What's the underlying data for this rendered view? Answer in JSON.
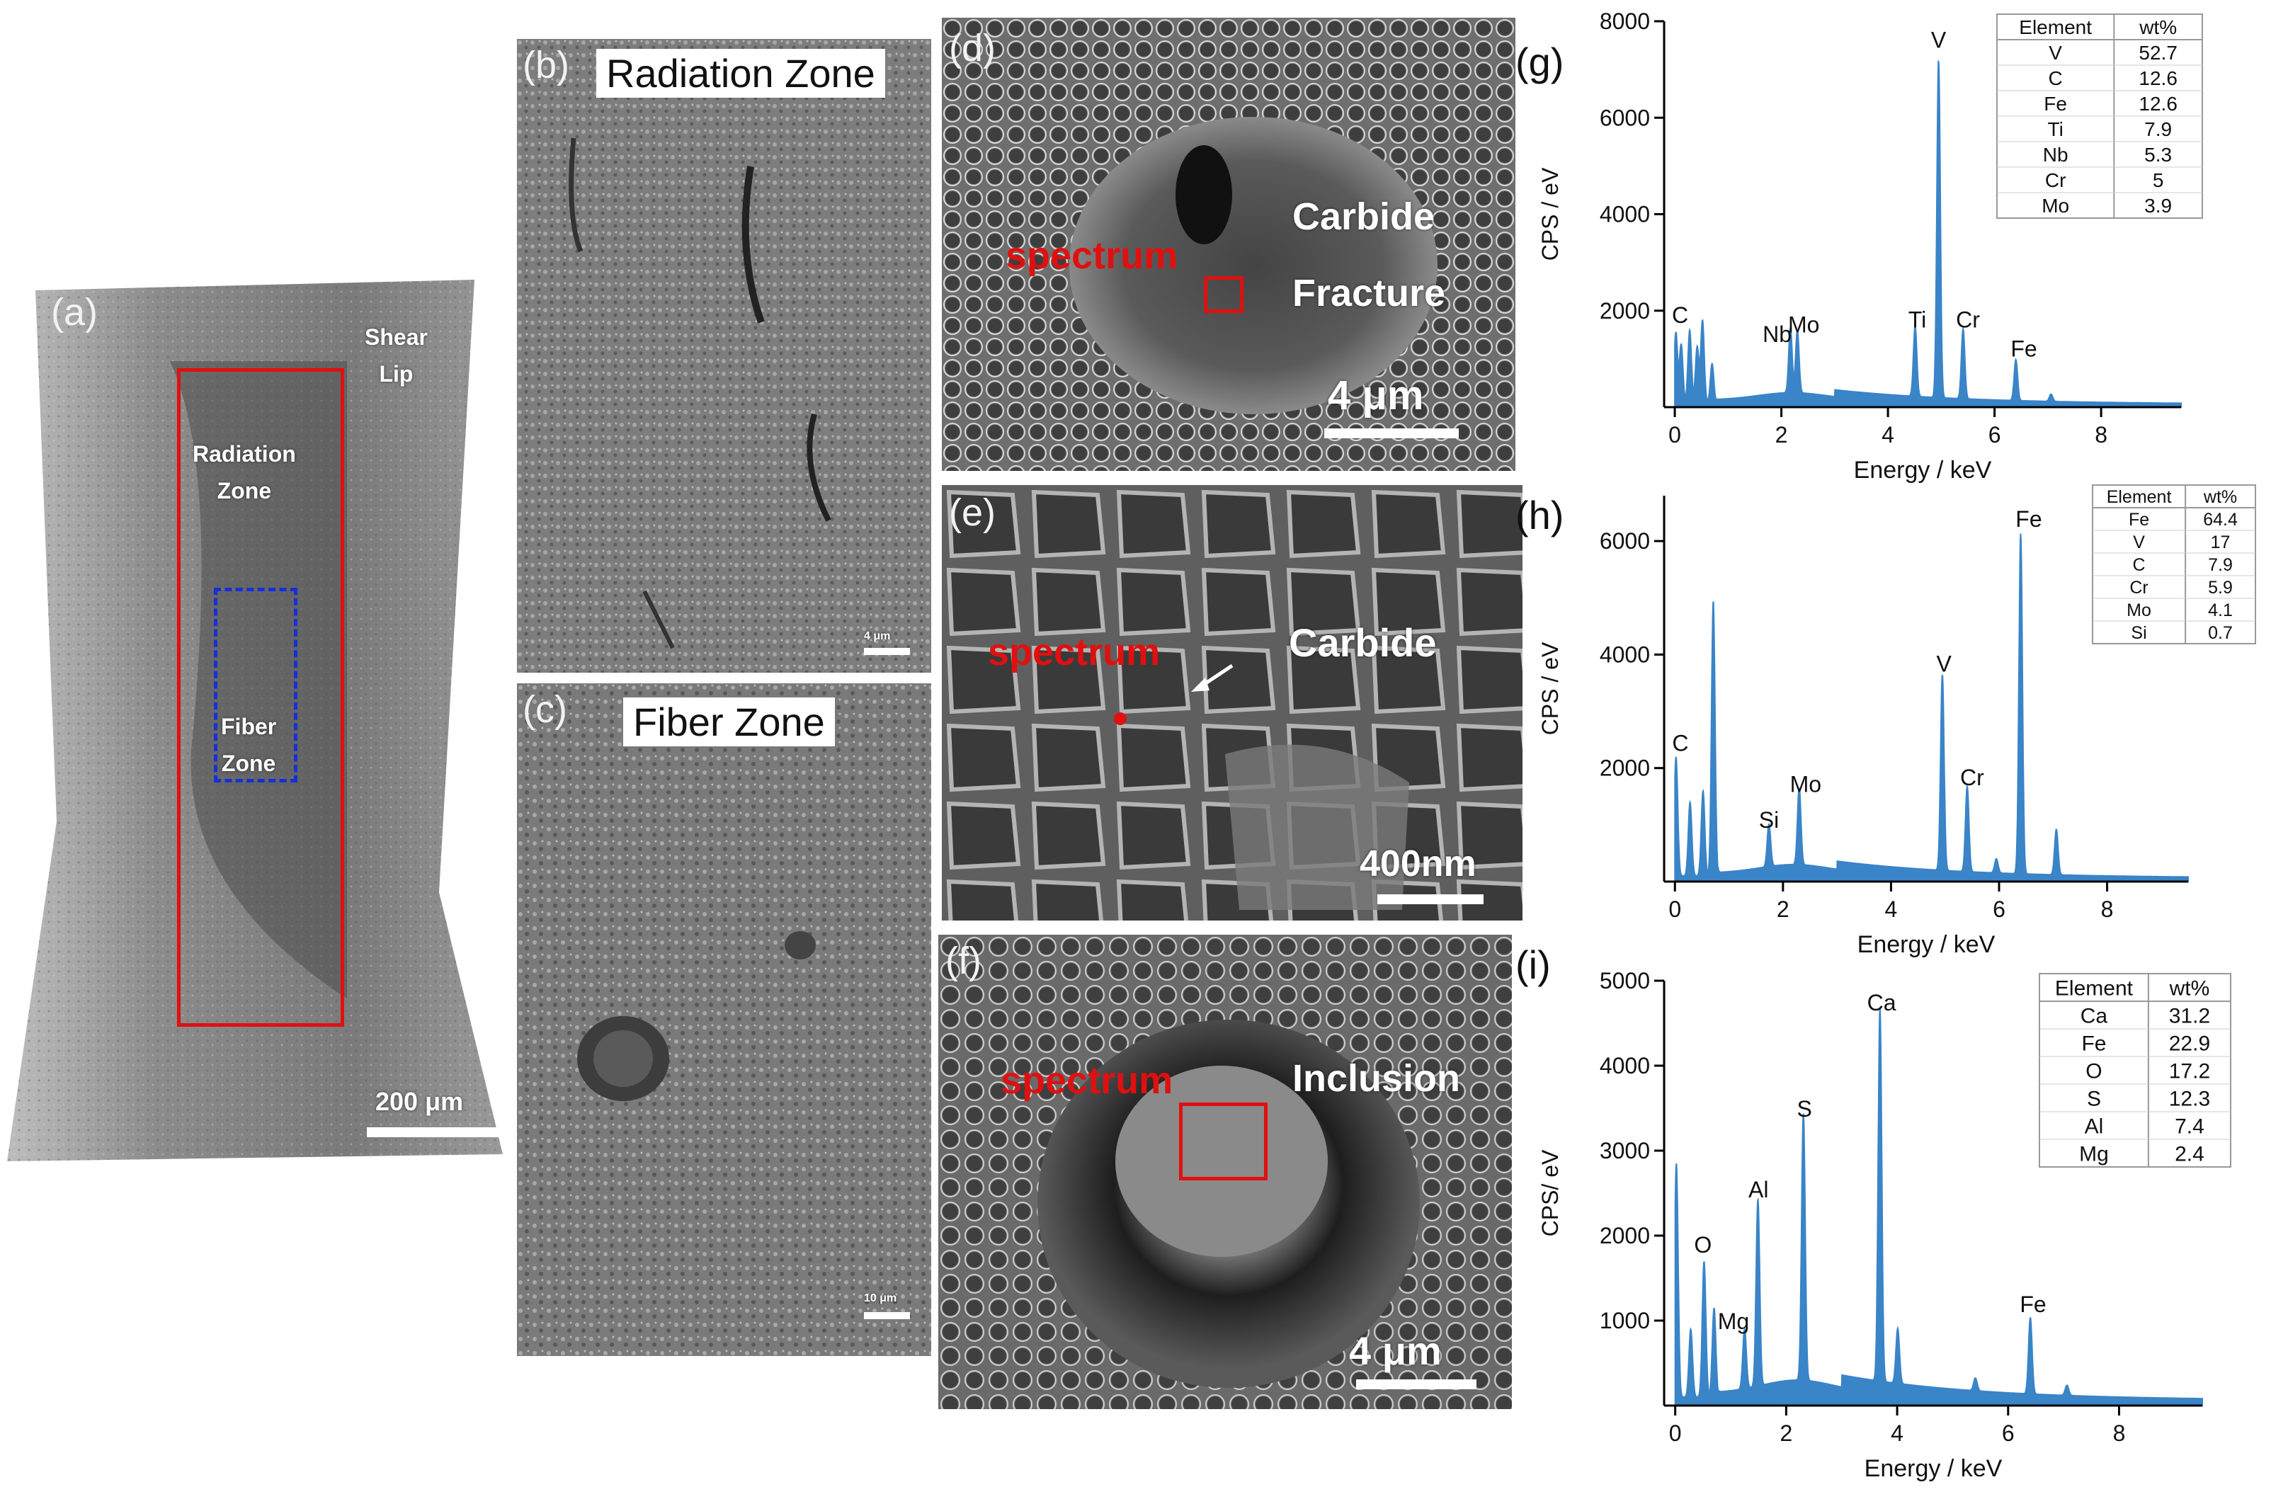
{
  "panel_a": {
    "letter": "(a)",
    "label_shear": "Shear\nLip",
    "label_radiation": "Radiation\nZone",
    "label_fiber": "Fiber\nZone",
    "scale": "200 μm"
  },
  "panel_b": {
    "letter": "(b)",
    "title": "Radiation Zone",
    "scale": "4 μm"
  },
  "panel_c": {
    "letter": "(c)",
    "title": "Fiber Zone",
    "scale": "10 μm"
  },
  "panel_d": {
    "letter": "(d)",
    "spectrum": "spectrum",
    "label1": "Carbide",
    "label2": "Fracture",
    "scale": "4 μm"
  },
  "panel_e": {
    "letter": "(e)",
    "spectrum": "spectrum",
    "label1": "Carbide",
    "scale": "400nm"
  },
  "panel_f": {
    "letter": "(f)",
    "spectrum": "spectrum",
    "label1": "Inclusion",
    "scale": "4 μm"
  },
  "chart_data": [
    {
      "panel": "(g)",
      "type": "line",
      "xlabel": "Energy / keV",
      "ylabel": "CPS / eV",
      "xlim": [
        -0.2,
        9.5
      ],
      "ylim": [
        0,
        8000
      ],
      "xticks": [
        0,
        2,
        4,
        6,
        8
      ],
      "yticks": [
        2000,
        4000,
        6000,
        8000
      ],
      "color": "#3a84c8",
      "peaks": [
        [
          0.02,
          1450
        ],
        [
          0.12,
          1200
        ],
        [
          0.28,
          1500
        ],
        [
          0.42,
          1150
        ],
        [
          0.52,
          1700
        ],
        [
          0.7,
          800
        ],
        [
          2.17,
          1350
        ],
        [
          2.3,
          1300
        ],
        [
          4.51,
          1450
        ],
        [
          4.95,
          7000
        ],
        [
          5.41,
          1450
        ],
        [
          6.4,
          850
        ],
        [
          7.06,
          150
        ]
      ],
      "peak_labels": [
        {
          "text": "C",
          "x": 0.1,
          "y": 1750
        },
        {
          "text": "Nb",
          "x": 1.92,
          "y": 1350
        },
        {
          "text": "Mo",
          "x": 2.42,
          "y": 1550
        },
        {
          "text": "Ti",
          "x": 4.55,
          "y": 1650
        },
        {
          "text": "V",
          "x": 4.95,
          "y": 7450
        },
        {
          "text": "Cr",
          "x": 5.5,
          "y": 1650
        },
        {
          "text": "Fe",
          "x": 6.55,
          "y": 1050
        }
      ],
      "table": {
        "headers": [
          "Element",
          "wt%"
        ],
        "rows": [
          [
            "V",
            "52.7"
          ],
          [
            "C",
            "12.6"
          ],
          [
            "Fe",
            "12.6"
          ],
          [
            "Ti",
            "7.9"
          ],
          [
            "Nb",
            "5.3"
          ],
          [
            "Cr",
            "5"
          ],
          [
            "Mo",
            "3.9"
          ]
        ]
      }
    },
    {
      "panel": "(h)",
      "type": "line",
      "xlabel": "Energy / keV",
      "ylabel": "CPS / eV",
      "xlim": [
        -0.2,
        9.5
      ],
      "ylim": [
        0,
        6800
      ],
      "xticks": [
        0,
        2,
        4,
        6,
        8
      ],
      "yticks": [
        2000,
        4000,
        6000
      ],
      "color": "#3a84c8",
      "peaks": [
        [
          0.02,
          2100
        ],
        [
          0.28,
          1300
        ],
        [
          0.52,
          1500
        ],
        [
          0.71,
          4850
        ],
        [
          1.74,
          750
        ],
        [
          2.3,
          1350
        ],
        [
          4.95,
          3450
        ],
        [
          5.41,
          1500
        ],
        [
          5.95,
          250
        ],
        [
          6.4,
          6000
        ],
        [
          7.06,
          800
        ]
      ],
      "peak_labels": [
        {
          "text": "C",
          "x": 0.1,
          "y": 2300
        },
        {
          "text": "Si",
          "x": 1.74,
          "y": 950
        },
        {
          "text": "Mo",
          "x": 2.42,
          "y": 1580
        },
        {
          "text": "V",
          "x": 4.98,
          "y": 3700
        },
        {
          "text": "Cr",
          "x": 5.5,
          "y": 1700
        },
        {
          "text": "Fe",
          "x": 6.55,
          "y": 6250
        }
      ],
      "table": {
        "headers": [
          "Element",
          "wt%"
        ],
        "rows": [
          [
            "Fe",
            "64.4"
          ],
          [
            "V",
            "17"
          ],
          [
            "C",
            "7.9"
          ],
          [
            "Cr",
            "5.9"
          ],
          [
            "Mo",
            "4.1"
          ],
          [
            "Si",
            "0.7"
          ]
        ]
      }
    },
    {
      "panel": "(i)",
      "type": "line",
      "xlabel": "Energy / keV",
      "ylabel": "CPS/ eV",
      "xlim": [
        -0.2,
        9.5
      ],
      "ylim": [
        0,
        5000
      ],
      "xticks": [
        0,
        2,
        4,
        6,
        8
      ],
      "yticks": [
        1000,
        2000,
        3000,
        4000,
        5000
      ],
      "color": "#3a84c8",
      "peaks": [
        [
          0.02,
          2750
        ],
        [
          0.28,
          800
        ],
        [
          0.52,
          1600
        ],
        [
          0.7,
          1050
        ],
        [
          1.25,
          700
        ],
        [
          1.49,
          2200
        ],
        [
          2.31,
          3150
        ],
        [
          3.69,
          4400
        ],
        [
          4.01,
          650
        ],
        [
          5.41,
          150
        ],
        [
          6.4,
          900
        ],
        [
          7.06,
          120
        ]
      ],
      "peak_labels": [
        {
          "text": "O",
          "x": 0.5,
          "y": 1800
        },
        {
          "text": "Mg",
          "x": 1.05,
          "y": 900
        },
        {
          "text": "Al",
          "x": 1.5,
          "y": 2450
        },
        {
          "text": "S",
          "x": 2.33,
          "y": 3400
        },
        {
          "text": "Ca",
          "x": 3.72,
          "y": 4650
        },
        {
          "text": "Fe",
          "x": 6.45,
          "y": 1100
        }
      ],
      "table": {
        "headers": [
          "Element",
          "wt%"
        ],
        "rows": [
          [
            "Ca",
            "31.2"
          ],
          [
            "Fe",
            "22.9"
          ],
          [
            "O",
            "17.2"
          ],
          [
            "S",
            "12.3"
          ],
          [
            "Al",
            "7.4"
          ],
          [
            "Mg",
            "2.4"
          ]
        ]
      }
    }
  ]
}
